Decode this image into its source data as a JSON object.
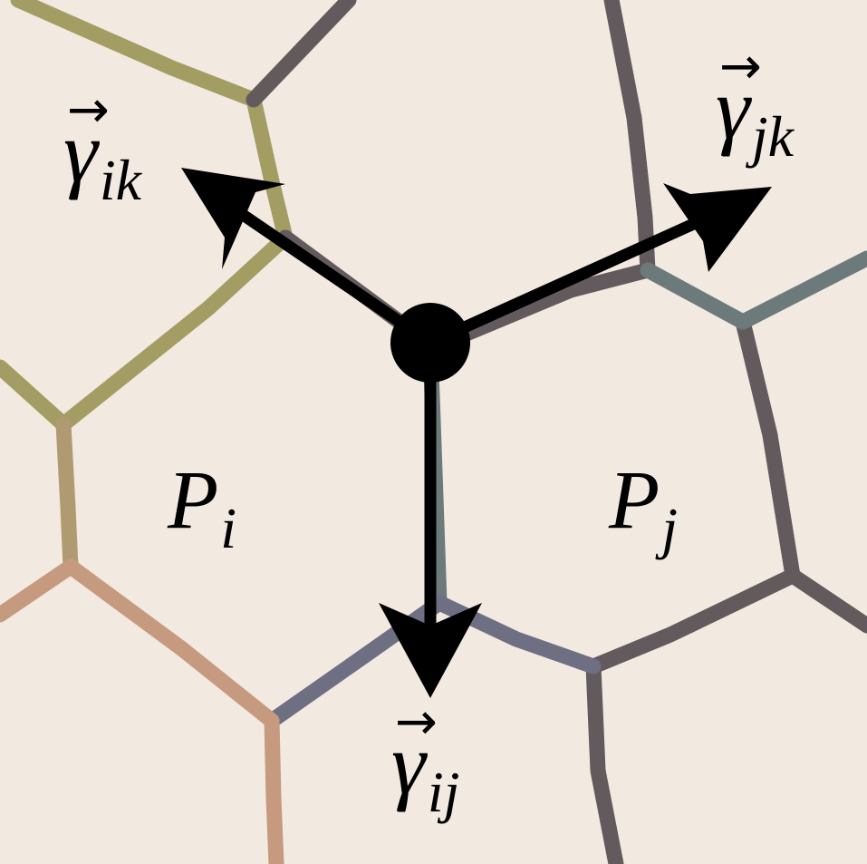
{
  "diagram": {
    "background": "#f2e9e1",
    "labels": {
      "cell_i": {
        "base": "P",
        "sub": "i"
      },
      "cell_j": {
        "base": "P",
        "sub": "j"
      },
      "gamma_ik": {
        "base": "γ",
        "sub": "ik",
        "accent": "→"
      },
      "gamma_jk": {
        "base": "γ",
        "sub": "jk",
        "accent": "→"
      },
      "gamma_ij": {
        "base": "γ",
        "sub": "ij",
        "accent": "→"
      }
    },
    "colors": {
      "olive_edge": "#a39d64",
      "tan_edge": "#b09a72",
      "salmon_edge": "#c69a7e",
      "dark_edge": "#625a5c",
      "slate_edge": "#6c7a7c",
      "blue_gray_edge": "#6e6f83",
      "arrow": "#000000",
      "junction": "#000000"
    }
  }
}
